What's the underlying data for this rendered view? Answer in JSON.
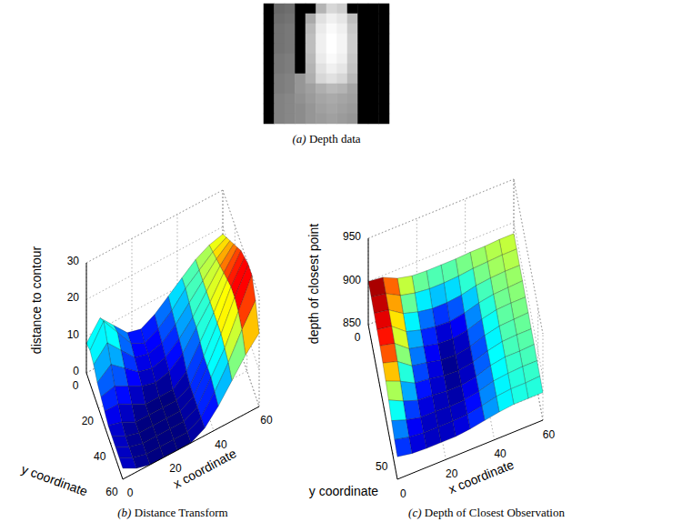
{
  "chart_data": [
    {
      "type": "heatmap",
      "caption": "(a) Depth data",
      "tick_labels": false,
      "value_range": [
        0,
        255
      ],
      "values": [
        [
          0,
          105,
          110,
          0,
          0,
          180,
          215,
          205,
          0,
          0,
          0,
          0
        ],
        [
          0,
          110,
          115,
          0,
          170,
          225,
          240,
          230,
          190,
          0,
          0,
          0
        ],
        [
          0,
          115,
          120,
          0,
          185,
          235,
          250,
          240,
          200,
          0,
          0,
          0
        ],
        [
          0,
          115,
          120,
          0,
          190,
          240,
          255,
          245,
          205,
          0,
          0,
          0
        ],
        [
          0,
          115,
          120,
          0,
          190,
          240,
          255,
          245,
          205,
          0,
          0,
          0
        ],
        [
          0,
          120,
          125,
          0,
          185,
          235,
          250,
          240,
          200,
          0,
          0,
          0
        ],
        [
          0,
          120,
          125,
          0,
          180,
          225,
          240,
          230,
          195,
          0,
          0,
          0
        ],
        [
          0,
          125,
          130,
          150,
          175,
          215,
          225,
          215,
          185,
          0,
          0,
          0
        ],
        [
          0,
          125,
          130,
          150,
          160,
          175,
          185,
          180,
          165,
          0,
          0,
          0
        ],
        [
          0,
          130,
          135,
          145,
          155,
          165,
          170,
          165,
          160,
          0,
          0,
          0
        ],
        [
          0,
          130,
          135,
          140,
          150,
          160,
          165,
          160,
          155,
          0,
          0,
          0
        ],
        [
          0,
          130,
          135,
          140,
          150,
          155,
          160,
          155,
          150,
          0,
          0,
          0
        ]
      ]
    },
    {
      "type": "surface",
      "caption": "(b) Distance Transform",
      "grid": true,
      "x_label": "x coordinate",
      "y_label": "y coordinate",
      "z_label": "distance to contour",
      "xlim": [
        0,
        60
      ],
      "ylim": [
        0,
        60
      ],
      "zlim": [
        0,
        30
      ],
      "xticks": [
        0,
        20,
        40,
        60
      ],
      "yticks": [
        0,
        20,
        40,
        60
      ],
      "zticks": [
        0,
        10,
        20,
        30
      ],
      "x": [
        0,
        6,
        12,
        18,
        24,
        30,
        36,
        42,
        48,
        54,
        60
      ],
      "y": [
        0,
        6,
        12,
        18,
        24,
        30,
        36,
        42,
        48,
        54,
        60
      ],
      "z": [
        [
          8,
          13,
          9,
          5,
          4,
          6,
          9,
          12,
          15,
          17,
          18
        ],
        [
          9,
          15,
          10,
          5,
          3,
          5,
          8,
          12,
          15,
          18,
          20
        ],
        [
          8,
          12,
          8,
          4,
          3,
          4,
          7,
          11,
          15,
          19,
          22
        ],
        [
          6,
          9,
          6,
          3,
          2,
          3,
          6,
          10,
          15,
          20,
          24
        ],
        [
          5,
          6,
          4,
          2,
          1,
          2,
          5,
          10,
          15,
          21,
          26
        ],
        [
          4,
          4,
          2,
          0,
          0,
          0,
          3,
          9,
          15,
          22,
          28
        ],
        [
          3,
          2,
          0,
          0,
          0,
          0,
          2,
          8,
          15,
          23,
          29
        ],
        [
          3,
          1,
          0,
          0,
          0,
          0,
          2,
          8,
          15,
          23,
          30
        ],
        [
          3,
          1,
          0,
          0,
          0,
          0,
          2,
          8,
          14,
          22,
          30
        ],
        [
          3,
          1,
          0,
          0,
          0,
          0,
          2,
          7,
          13,
          20,
          26
        ],
        [
          3,
          1,
          0,
          0,
          0,
          0,
          2,
          6,
          11,
          16,
          20
        ]
      ]
    },
    {
      "type": "surface",
      "caption": "(c) Depth of Closest Observation",
      "grid": true,
      "x_label": "x coordinate",
      "y_label": "y coordinate",
      "z_label": "depth of closest point",
      "xlim": [
        0,
        60
      ],
      "ylim": [
        0,
        60
      ],
      "zlim": [
        850,
        950
      ],
      "xticks": [
        0,
        20,
        40,
        60
      ],
      "yticks": [
        0,
        50
      ],
      "zticks": [
        850,
        900,
        950
      ],
      "x": [
        0,
        6,
        12,
        18,
        24,
        30,
        36,
        42,
        48,
        54,
        60
      ],
      "y": [
        0,
        6,
        12,
        18,
        24,
        30,
        36,
        42,
        48,
        54,
        60
      ],
      "z": [
        [
          900,
          898,
          890,
          886,
          885,
          885,
          885,
          886,
          886,
          887,
          887
        ],
        [
          900,
          897,
          888,
          884,
          882,
          882,
          883,
          885,
          886,
          887,
          887
        ],
        [
          899,
          896,
          885,
          880,
          877,
          877,
          879,
          883,
          885,
          886,
          886
        ],
        [
          898,
          895,
          882,
          877,
          874,
          873,
          876,
          881,
          884,
          885,
          886
        ],
        [
          897,
          893,
          880,
          876,
          872,
          871,
          874,
          880,
          884,
          885,
          885
        ],
        [
          895,
          890,
          878,
          875,
          871,
          870,
          873,
          879,
          883,
          884,
          885
        ],
        [
          892,
          885,
          876,
          874,
          871,
          870,
          873,
          879,
          883,
          884,
          884
        ],
        [
          888,
          880,
          874,
          873,
          871,
          871,
          874,
          880,
          883,
          883,
          884
        ],
        [
          882,
          876,
          872,
          872,
          871,
          872,
          875,
          880,
          882,
          883,
          883
        ],
        [
          878,
          874,
          872,
          872,
          872,
          873,
          876,
          880,
          882,
          882,
          883
        ],
        [
          876,
          873,
          872,
          872,
          872,
          874,
          877,
          880,
          882,
          882,
          882
        ]
      ]
    }
  ]
}
